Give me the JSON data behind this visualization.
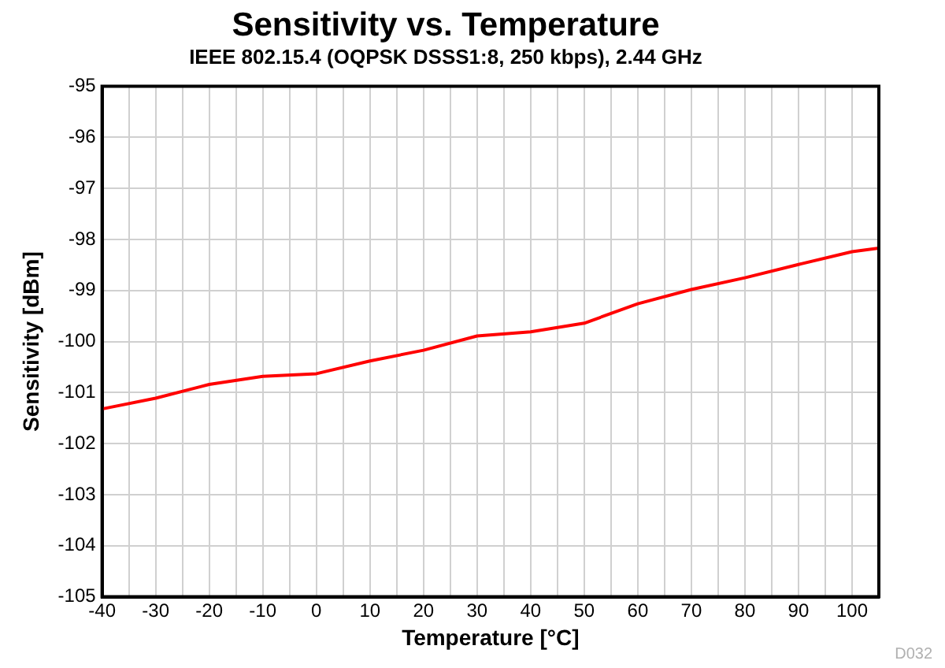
{
  "chart_data": {
    "type": "line",
    "title": "Sensitivity vs. Temperature",
    "subtitle": "IEEE 802.15.4 (OQPSK DSSS1:8, 250 kbps), 2.44 GHz",
    "xlabel": "Temperature [°C]",
    "ylabel": "Sensitivity [dBm]",
    "x": [
      -40,
      -30,
      -20,
      -10,
      0,
      10,
      20,
      30,
      40,
      50,
      60,
      70,
      80,
      90,
      100,
      105
    ],
    "series": [
      {
        "color": "#ff0000",
        "values": [
          -101.32,
          -101.11,
          -100.84,
          -100.68,
          -100.63,
          -100.38,
          -100.17,
          -99.89,
          -99.81,
          -99.64,
          -99.26,
          -98.98,
          -98.75,
          -98.49,
          -98.24,
          -98.17
        ]
      }
    ],
    "xlim": [
      -40,
      105
    ],
    "xticks": [
      -40,
      {
        "value": -35,
        "label": null
      },
      -30,
      {
        "value": -25,
        "label": null
      },
      -20,
      {
        "value": -15,
        "label": null
      },
      -10,
      {
        "value": -5,
        "label": null
      },
      0,
      {
        "value": 5,
        "label": null
      },
      10,
      {
        "value": 15,
        "label": null
      },
      20,
      {
        "value": 25,
        "label": null
      },
      30,
      {
        "value": 35,
        "label": null
      },
      40,
      {
        "value": 45,
        "label": null
      },
      50,
      {
        "value": 55,
        "label": null
      },
      60,
      {
        "value": 65,
        "label": null
      },
      70,
      {
        "value": 75,
        "label": null
      },
      80,
      {
        "value": 85,
        "label": null
      },
      90,
      {
        "value": 95,
        "label": null
      },
      100,
      {
        "value": 105,
        "label": null
      }
    ],
    "ylim": [
      -105,
      -95
    ],
    "yticks": [
      -105,
      -104,
      -103,
      -102,
      -101,
      -100,
      -99,
      -98,
      -97,
      -96,
      -95
    ],
    "grid": true,
    "legend": false,
    "marker": "none",
    "line_style": "solid",
    "annotations": [
      "D032"
    ]
  }
}
